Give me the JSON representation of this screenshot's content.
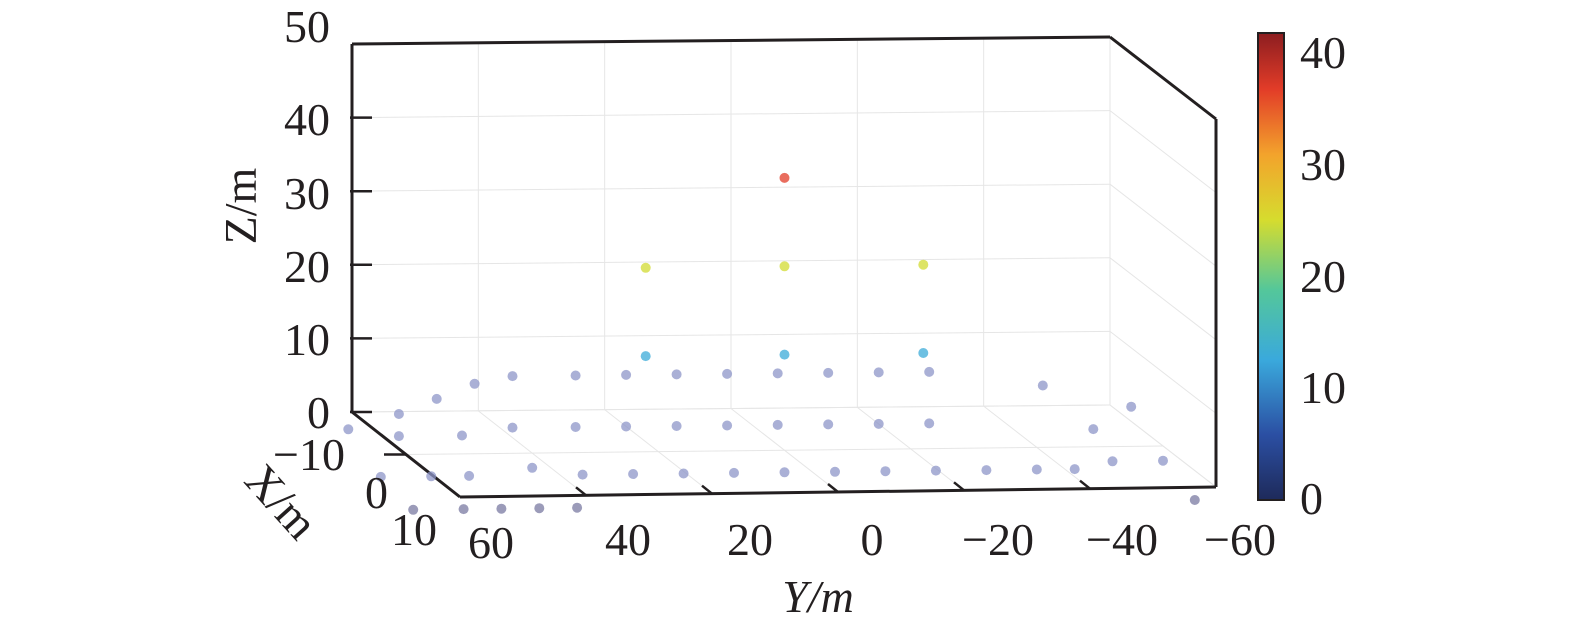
{
  "chart_data": {
    "type": "scatter",
    "title": "",
    "projection": "3d",
    "xlabel": "X/m",
    "ylabel": "Y/m",
    "zlabel": "Z/m",
    "xlim": [
      -10,
      10
    ],
    "ylim": [
      -60,
      60
    ],
    "zlim": [
      0,
      50
    ],
    "xticks": [
      "−10",
      "0",
      "10"
    ],
    "yticks": [
      "60",
      "40",
      "20",
      "0",
      "−20",
      "−40",
      "−60"
    ],
    "zticks": [
      "0",
      "10",
      "20",
      "30",
      "40",
      "50"
    ],
    "grid": true,
    "colorbar": {
      "range": [
        0,
        42
      ],
      "ticks": [
        "0",
        "10",
        "20",
        "30",
        "40"
      ],
      "colormap": [
        "#1e2a5a",
        "#2b4fa3",
        "#3aa9dc",
        "#54c79a",
        "#d6dc2e",
        "#f3a32c",
        "#e23c28",
        "#8c1d20"
      ]
    },
    "marker_color_low": "#8e96c8",
    "marker_color_edge": "#7a7aa2",
    "points": [
      {
        "x": 0,
        "y": 22,
        "z": 13,
        "c": 13
      },
      {
        "x": 0,
        "y": 0,
        "z": 13,
        "c": 13
      },
      {
        "x": 0,
        "y": -22,
        "z": 13,
        "c": 13
      },
      {
        "x": 0,
        "y": 22,
        "z": 25,
        "c": 25
      },
      {
        "x": 0,
        "y": 0,
        "z": 25,
        "c": 25
      },
      {
        "x": 0,
        "y": -22,
        "z": 25,
        "c": 25
      },
      {
        "x": 0,
        "y": 0,
        "z": 37,
        "c": 37
      },
      {
        "x": -6,
        "y": 64,
        "z": 0,
        "c": 0
      },
      {
        "x": -6,
        "y": 56,
        "z": 2,
        "c": 0
      },
      {
        "x": -6,
        "y": 50,
        "z": 4,
        "c": 0
      },
      {
        "x": -6,
        "y": 44,
        "z": 6,
        "c": 0
      },
      {
        "x": -6,
        "y": 38,
        "z": 7,
        "c": 0
      },
      {
        "x": -6,
        "y": 28,
        "z": 7,
        "c": 0
      },
      {
        "x": -6,
        "y": 20,
        "z": 7,
        "c": 0
      },
      {
        "x": -6,
        "y": 12,
        "z": 7,
        "c": 0
      },
      {
        "x": -6,
        "y": 4,
        "z": 7,
        "c": 0
      },
      {
        "x": -6,
        "y": -4,
        "z": 7,
        "c": 0
      },
      {
        "x": -6,
        "y": -12,
        "z": 7,
        "c": 0
      },
      {
        "x": -6,
        "y": -20,
        "z": 7,
        "c": 0
      },
      {
        "x": -6,
        "y": -28,
        "z": 7,
        "c": 0
      },
      {
        "x": -6,
        "y": -46,
        "z": 5,
        "c": 0
      },
      {
        "x": -6,
        "y": -60,
        "z": 2,
        "c": 0
      },
      {
        "x": -6,
        "y": 56,
        "z": -1,
        "c": 0
      },
      {
        "x": -6,
        "y": 46,
        "z": -1,
        "c": 0
      },
      {
        "x": -6,
        "y": 38,
        "z": 0,
        "c": 0
      },
      {
        "x": -6,
        "y": 28,
        "z": 0,
        "c": 0
      },
      {
        "x": -6,
        "y": 20,
        "z": 0,
        "c": 0
      },
      {
        "x": -6,
        "y": 12,
        "z": 0,
        "c": 0
      },
      {
        "x": -6,
        "y": 4,
        "z": 0,
        "c": 0
      },
      {
        "x": -6,
        "y": -4,
        "z": 0,
        "c": 0
      },
      {
        "x": -6,
        "y": -12,
        "z": 0,
        "c": 0
      },
      {
        "x": -6,
        "y": -20,
        "z": 0,
        "c": 0
      },
      {
        "x": -6,
        "y": -28,
        "z": 0,
        "c": 0
      },
      {
        "x": -6,
        "y": -54,
        "z": -1,
        "c": 0
      },
      {
        "x": 0,
        "y": 64,
        "z": -3,
        "c": 0
      },
      {
        "x": 0,
        "y": 56,
        "z": -3,
        "c": 0
      },
      {
        "x": 0,
        "y": 50,
        "z": -3,
        "c": 0
      },
      {
        "x": 0,
        "y": 40,
        "z": -2,
        "c": 0
      },
      {
        "x": 0,
        "y": 32,
        "z": -3,
        "c": 0
      },
      {
        "x": 0,
        "y": 24,
        "z": -3,
        "c": 0
      },
      {
        "x": 0,
        "y": 16,
        "z": -3,
        "c": 0
      },
      {
        "x": 0,
        "y": 8,
        "z": -3,
        "c": 0
      },
      {
        "x": 0,
        "y": 0,
        "z": -3,
        "c": 0
      },
      {
        "x": 0,
        "y": -8,
        "z": -3,
        "c": 0
      },
      {
        "x": 0,
        "y": -16,
        "z": -3,
        "c": 0
      },
      {
        "x": 0,
        "y": -24,
        "z": -3,
        "c": 0
      },
      {
        "x": 0,
        "y": -32,
        "z": -3,
        "c": 0
      },
      {
        "x": 0,
        "y": -40,
        "z": -3,
        "c": 0
      },
      {
        "x": 0,
        "y": -46,
        "z": -3,
        "c": 0
      },
      {
        "x": 0,
        "y": -52,
        "z": -2,
        "c": 0
      },
      {
        "x": 0,
        "y": -60,
        "z": -2,
        "c": 0
      },
      {
        "x": 6,
        "y": 64,
        "z": -4,
        "c": 0
      },
      {
        "x": 6,
        "y": 56,
        "z": -4,
        "c": 0
      },
      {
        "x": 6,
        "y": 50,
        "z": -4,
        "c": 0
      },
      {
        "x": 6,
        "y": 44,
        "z": -4,
        "c": 0
      },
      {
        "x": 6,
        "y": 38,
        "z": -4,
        "c": 0
      },
      {
        "x": 6,
        "y": -60,
        "z": -4,
        "c": 0
      }
    ]
  }
}
